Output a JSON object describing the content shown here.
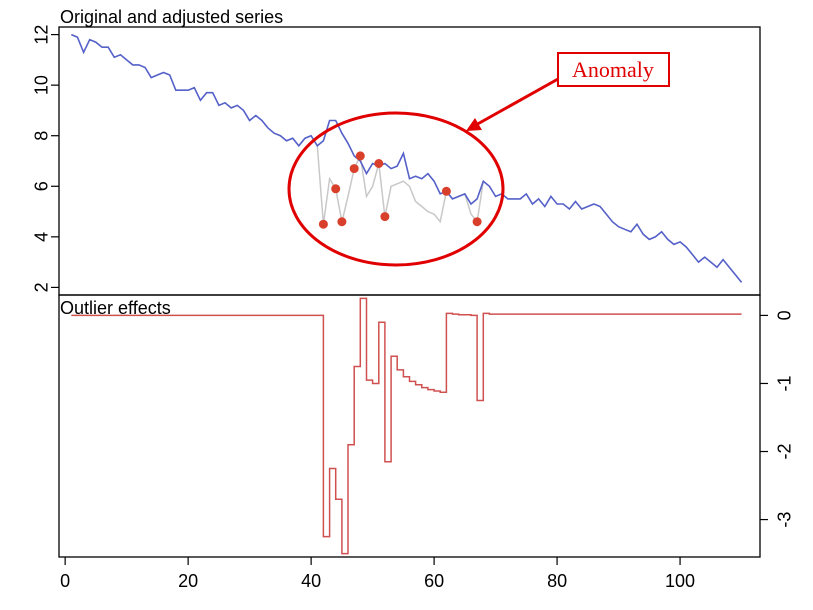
{
  "colors": {
    "adjusted": "#5561c8",
    "original": "#c8c8c8",
    "outlier_points": "#d9402c",
    "outlier_effects": "#d05050",
    "annotation": "#e00000",
    "axis": "#000000"
  },
  "chart_data": [
    {
      "type": "line",
      "title": "Original and adjusted series",
      "xlabel": "",
      "ylabel": "",
      "xlim": [
        -1,
        113
      ],
      "ylim": [
        1.7,
        12.3
      ],
      "yticks": [
        2,
        4,
        6,
        8,
        10,
        12
      ],
      "ytick_labels": [
        "2",
        "4",
        "6",
        "8",
        "10",
        "12"
      ],
      "grid": false,
      "series": [
        {
          "role": "adjusted",
          "x": [
            1,
            2,
            3,
            4,
            5,
            6,
            7,
            8,
            9,
            10,
            11,
            12,
            13,
            14,
            15,
            16,
            17,
            18,
            19,
            20,
            21,
            22,
            23,
            24,
            25,
            26,
            27,
            28,
            29,
            30,
            31,
            32,
            33,
            34,
            35,
            36,
            37,
            38,
            39,
            40,
            41,
            42,
            43,
            44,
            45,
            46,
            47,
            48,
            49,
            50,
            51,
            52,
            53,
            54,
            55,
            56,
            57,
            58,
            59,
            60,
            61,
            62,
            63,
            64,
            65,
            66,
            67,
            68,
            69,
            70,
            71,
            72,
            73,
            74,
            75,
            76,
            77,
            78,
            79,
            80,
            81,
            82,
            83,
            84,
            85,
            86,
            87,
            88,
            89,
            90,
            91,
            92,
            93,
            94,
            95,
            96,
            97,
            98,
            99,
            100,
            101,
            102,
            103,
            104,
            105,
            106,
            107,
            108,
            109,
            110
          ],
          "values": [
            12.0,
            11.9,
            11.3,
            11.8,
            11.7,
            11.5,
            11.5,
            11.1,
            11.2,
            11.0,
            10.8,
            10.8,
            10.7,
            10.3,
            10.4,
            10.5,
            10.4,
            9.8,
            9.8,
            9.8,
            9.9,
            9.4,
            9.7,
            9.7,
            9.2,
            9.3,
            9.1,
            9.2,
            9.0,
            8.6,
            8.8,
            8.6,
            8.3,
            8.1,
            8.0,
            7.8,
            7.9,
            7.6,
            7.9,
            8.0,
            7.6,
            7.8,
            8.6,
            8.6,
            8.1,
            7.7,
            7.2,
            7.0,
            6.5,
            6.9,
            6.8,
            6.9,
            6.7,
            6.8,
            7.3,
            6.3,
            6.4,
            6.3,
            6.5,
            6.2,
            5.7,
            5.8,
            5.5,
            5.6,
            5.7,
            5.3,
            5.5,
            6.2,
            6.0,
            5.6,
            5.7,
            5.5,
            5.5,
            5.5,
            5.7,
            5.3,
            5.5,
            5.2,
            5.6,
            5.3,
            5.3,
            5.1,
            5.4,
            5.1,
            5.2,
            5.3,
            5.2,
            4.9,
            4.6,
            4.4,
            4.3,
            4.2,
            4.5,
            4.1,
            3.9,
            4.0,
            4.2,
            3.9,
            3.7,
            3.8,
            3.6,
            3.3,
            3.0,
            3.2,
            3.0,
            2.8,
            3.1,
            2.8,
            2.5,
            2.2
          ]
        },
        {
          "role": "original",
          "x": [
            41,
            42,
            43,
            44,
            45,
            46,
            47,
            48,
            49,
            50,
            51,
            52,
            53,
            54,
            55,
            56,
            57,
            58,
            59,
            60,
            61,
            62,
            63,
            64,
            65,
            66,
            67,
            68
          ],
          "values": [
            7.6,
            4.5,
            6.3,
            5.9,
            4.6,
            5.6,
            6.7,
            7.2,
            5.6,
            6.0,
            6.9,
            4.8,
            6.0,
            6.1,
            6.2,
            6.0,
            5.4,
            5.2,
            5.0,
            4.9,
            4.6,
            5.8,
            5.5,
            5.6,
            5.7,
            4.9,
            4.6,
            6.2
          ]
        }
      ],
      "outlier_points": {
        "x": [
          42,
          44,
          45,
          47,
          48,
          51,
          52,
          62,
          67
        ],
        "values": [
          4.5,
          5.9,
          4.6,
          6.7,
          7.2,
          6.9,
          4.8,
          5.8,
          4.6
        ]
      },
      "annotations": [
        {
          "text": "Anomaly"
        }
      ]
    },
    {
      "type": "line",
      "title": "Outlier effects",
      "xlabel": "",
      "ylabel": "",
      "xlim": [
        -1,
        113
      ],
      "ylim": [
        -3.55,
        0.3
      ],
      "xticks": [
        0,
        20,
        40,
        60,
        80,
        100
      ],
      "xtick_labels": [
        "0",
        "20",
        "40",
        "60",
        "80",
        "100"
      ],
      "yticks": [
        0,
        -1,
        -2,
        -3
      ],
      "ytick_labels": [
        "0",
        "-1",
        "-2",
        "-3"
      ],
      "y_axis_side": "right",
      "step": true,
      "grid": false,
      "series": [
        {
          "role": "effects",
          "x": [
            1,
            2,
            3,
            4,
            5,
            6,
            7,
            8,
            9,
            10,
            11,
            12,
            13,
            14,
            15,
            16,
            17,
            18,
            19,
            20,
            21,
            22,
            23,
            24,
            25,
            26,
            27,
            28,
            29,
            30,
            31,
            32,
            33,
            34,
            35,
            36,
            37,
            38,
            39,
            40,
            41,
            42,
            43,
            44,
            45,
            46,
            47,
            48,
            49,
            50,
            51,
            52,
            53,
            54,
            55,
            56,
            57,
            58,
            59,
            60,
            61,
            62,
            63,
            64,
            65,
            66,
            67,
            68,
            69,
            70,
            71,
            72,
            73,
            74,
            75,
            76,
            77,
            78,
            79,
            80,
            81,
            82,
            83,
            84,
            85,
            86,
            87,
            88,
            89,
            90,
            91,
            92,
            93,
            94,
            95,
            96,
            97,
            98,
            99,
            100,
            101,
            102,
            103,
            104,
            105,
            106,
            107,
            108,
            109,
            110
          ],
          "values": [
            0,
            0,
            0,
            0,
            0,
            0,
            0,
            0,
            0,
            0,
            0,
            0,
            0,
            0,
            0,
            0,
            0,
            0,
            0,
            0,
            0,
            0,
            0,
            0,
            0,
            0,
            0,
            0,
            0,
            0,
            0,
            0,
            0,
            0,
            0,
            0,
            0,
            0,
            0,
            0,
            0,
            -3.25,
            -2.25,
            -2.7,
            -3.5,
            -1.9,
            -0.75,
            0.25,
            -0.95,
            -1.0,
            -0.1,
            -2.15,
            -0.6,
            -0.8,
            -0.9,
            -0.97,
            -1.02,
            -1.06,
            -1.09,
            -1.11,
            -1.13,
            0.03,
            0.02,
            0.01,
            0.01,
            0.0,
            -1.25,
            0.03,
            0.02,
            0.02,
            0.02,
            0.02,
            0.02,
            0.02,
            0.02,
            0.02,
            0.02,
            0.02,
            0.02,
            0.02,
            0.02,
            0.02,
            0.02,
            0.02,
            0.02,
            0.02,
            0.02,
            0.02,
            0.02,
            0.02,
            0.02,
            0.02,
            0.02,
            0.02,
            0.02,
            0.02,
            0.02,
            0.02,
            0.02,
            0.02,
            0.02,
            0.02,
            0.02,
            0.02,
            0.02,
            0.02,
            0.02,
            0.02,
            0.02,
            0.02
          ]
        }
      ]
    }
  ]
}
